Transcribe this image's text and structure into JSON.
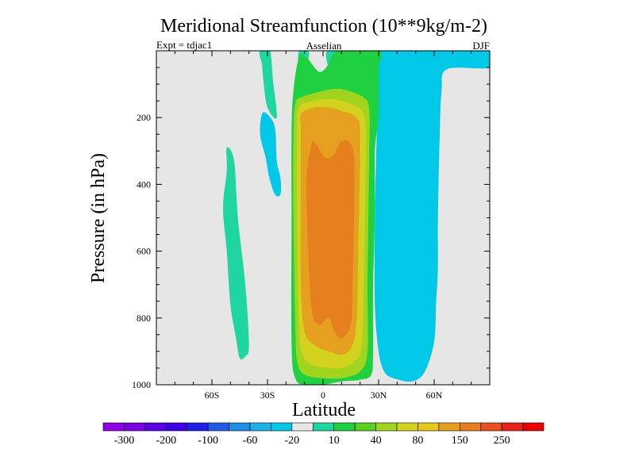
{
  "chart_data": {
    "type": "heatmap",
    "title": "Meridional Streamfunction (10**9kg/m-2)",
    "subtitle_left": "Expt = tdjac1",
    "subtitle_center": "Asselian",
    "subtitle_right": "DJF",
    "xlabel": "Latitude",
    "ylabel": "Pressure (in hPa)",
    "xlim": [
      -90,
      90
    ],
    "ylim": [
      1000,
      0
    ],
    "x_ticks": [
      {
        "value": -60,
        "label": "60S"
      },
      {
        "value": -30,
        "label": "30S"
      },
      {
        "value": 0,
        "label": "0"
      },
      {
        "value": 30,
        "label": "30N"
      },
      {
        "value": 60,
        "label": "60N"
      }
    ],
    "y_ticks": [
      {
        "value": 200,
        "label": "200"
      },
      {
        "value": 400,
        "label": "400"
      },
      {
        "value": 600,
        "label": "600"
      },
      {
        "value": 800,
        "label": "800"
      },
      {
        "value": 1000,
        "label": "1000"
      }
    ],
    "missing_color": "#e6e6e6",
    "colorbar": {
      "colors": [
        "#8f00e6",
        "#7a00e6",
        "#5c00e6",
        "#3d00e6",
        "#1f1fe6",
        "#1f5ce6",
        "#1f8fe6",
        "#1fb0e6",
        "#00c8e6",
        "#e6e6e6",
        "#1fd6a0",
        "#1fd040",
        "#5cd020",
        "#a0d41f",
        "#d2d21f",
        "#e6c81f",
        "#e6a01f",
        "#e6801f",
        "#e6501f",
        "#e61f1f",
        "#e60000"
      ],
      "labels": [
        {
          "after_index": 0,
          "text": "-300"
        },
        {
          "after_index": 2,
          "text": "-200"
        },
        {
          "after_index": 4,
          "text": "-100"
        },
        {
          "after_index": 6,
          "text": "-60"
        },
        {
          "after_index": 8,
          "text": "-20"
        },
        {
          "after_index": 10,
          "text": "10"
        },
        {
          "after_index": 12,
          "text": "40"
        },
        {
          "after_index": 14,
          "text": "80"
        },
        {
          "after_index": 16,
          "text": "150"
        },
        {
          "after_index": 18,
          "text": "250"
        }
      ]
    },
    "regions": [
      {
        "name": "sh-weak-positive-cell",
        "color": "#1fd6a0",
        "points": [
          [
            -52,
            290
          ],
          [
            -48,
            330
          ],
          [
            -46,
            500
          ],
          [
            -42,
            700
          ],
          [
            -40,
            880
          ],
          [
            -42,
            915
          ],
          [
            -45,
            920
          ],
          [
            -47,
            860
          ],
          [
            -50,
            760
          ],
          [
            -52,
            600
          ],
          [
            -54,
            470
          ],
          [
            -52,
            360
          ]
        ]
      },
      {
        "name": "sh-upper-negative-cell",
        "color": "#00c8e6",
        "points": [
          [
            -33,
            190
          ],
          [
            -30,
            190
          ],
          [
            -26,
            230
          ],
          [
            -25,
            330
          ],
          [
            -23,
            380
          ],
          [
            -23,
            430
          ],
          [
            -26,
            430
          ],
          [
            -29,
            380
          ],
          [
            -31,
            320
          ],
          [
            -34,
            250
          ]
        ]
      },
      {
        "name": "upper-positive-lobe-1",
        "color": "#1fd6a0",
        "points": [
          [
            -34,
            0
          ],
          [
            -29,
            0
          ],
          [
            -28,
            20
          ],
          [
            -27,
            90
          ],
          [
            -25,
            200
          ],
          [
            -30,
            170
          ],
          [
            -32,
            100
          ],
          [
            -33,
            40
          ],
          [
            -34,
            20
          ]
        ]
      },
      {
        "name": "upper-positive-lobe-2",
        "color": "#1fd6a0",
        "points": [
          [
            -13,
            0
          ],
          [
            -8,
            0
          ],
          [
            -8,
            30
          ],
          [
            -10,
            80
          ],
          [
            -13,
            60
          ]
        ]
      },
      {
        "name": "upper-positive-lobe-3",
        "color": "#1fd6a0",
        "points": [
          [
            2,
            0
          ],
          [
            7,
            0
          ],
          [
            7,
            40
          ],
          [
            4,
            60
          ],
          [
            2,
            30
          ]
        ]
      },
      {
        "name": "nh-negative-cell",
        "color": "#00c8e6",
        "points": [
          [
            30,
            0
          ],
          [
            90,
            0
          ],
          [
            90,
            50
          ],
          [
            67,
            55
          ],
          [
            64,
            120
          ],
          [
            63,
            250
          ],
          [
            62,
            500
          ],
          [
            62,
            650
          ],
          [
            61,
            760
          ],
          [
            60,
            870
          ],
          [
            55,
            960
          ],
          [
            48,
            990
          ],
          [
            38,
            980
          ],
          [
            33,
            960
          ],
          [
            30,
            900
          ],
          [
            28,
            760
          ],
          [
            28,
            500
          ],
          [
            29,
            250
          ],
          [
            30,
            100
          ]
        ]
      },
      {
        "name": "nh-negative-core",
        "color": "#00c8e6",
        "points": [
          [
            50,
            140
          ],
          [
            55,
            210
          ],
          [
            59,
            320
          ],
          [
            60,
            480
          ],
          [
            59,
            620
          ],
          [
            58,
            760
          ],
          [
            56,
            880
          ],
          [
            52,
            940
          ],
          [
            45,
            960
          ],
          [
            38,
            950
          ],
          [
            35,
            880
          ],
          [
            33,
            700
          ],
          [
            33,
            500
          ],
          [
            35,
            330
          ],
          [
            40,
            230
          ],
          [
            45,
            180
          ]
        ]
      },
      {
        "name": "hadley-positive-40",
        "color": "#1fd040",
        "points": [
          [
            -13,
            20
          ],
          [
            -9,
            20
          ],
          [
            -3,
            60
          ],
          [
            0,
            60
          ],
          [
            3,
            40
          ],
          [
            8,
            0
          ],
          [
            30,
            0
          ],
          [
            30,
            60
          ],
          [
            30,
            200
          ],
          [
            28,
            300
          ],
          [
            28,
            500
          ],
          [
            27,
            700
          ],
          [
            27,
            900
          ],
          [
            26,
            970
          ],
          [
            20,
            985
          ],
          [
            10,
            990
          ],
          [
            0,
            1000
          ],
          [
            -10,
            1000
          ],
          [
            -15,
            980
          ],
          [
            -17,
            880
          ],
          [
            -17,
            500
          ],
          [
            -17,
            240
          ],
          [
            -16,
            120
          ]
        ]
      },
      {
        "name": "hadley-positive-80",
        "color": "#a0d41f",
        "points": [
          [
            -15,
            160
          ],
          [
            -12,
            140
          ],
          [
            0,
            120
          ],
          [
            10,
            115
          ],
          [
            22,
            140
          ],
          [
            25,
            180
          ],
          [
            25,
            300
          ],
          [
            24,
            700
          ],
          [
            24,
            900
          ],
          [
            20,
            960
          ],
          [
            10,
            980
          ],
          [
            0,
            980
          ],
          [
            -10,
            970
          ],
          [
            -14,
            930
          ],
          [
            -15,
            820
          ],
          [
            -16,
            500
          ],
          [
            -16,
            260
          ]
        ]
      },
      {
        "name": "hadley-positive-100",
        "color": "#d2d21f",
        "points": [
          [
            -13,
            170
          ],
          [
            -5,
            150
          ],
          [
            5,
            145
          ],
          [
            15,
            160
          ],
          [
            22,
            190
          ],
          [
            23,
            300
          ],
          [
            22,
            700
          ],
          [
            21,
            880
          ],
          [
            17,
            930
          ],
          [
            10,
            950
          ],
          [
            2,
            950
          ],
          [
            -6,
            940
          ],
          [
            -11,
            910
          ],
          [
            -13,
            820
          ],
          [
            -14,
            500
          ],
          [
            -14,
            250
          ]
        ]
      },
      {
        "name": "hadley-positive-150",
        "color": "#e6a01f",
        "points": [
          [
            -12,
            190
          ],
          [
            -5,
            170
          ],
          [
            3,
            170
          ],
          [
            10,
            180
          ],
          [
            18,
            200
          ],
          [
            20,
            260
          ],
          [
            19,
            600
          ],
          [
            18,
            820
          ],
          [
            15,
            890
          ],
          [
            10,
            910
          ],
          [
            3,
            900
          ],
          [
            -5,
            880
          ],
          [
            -10,
            840
          ],
          [
            -12,
            700
          ],
          [
            -12,
            400
          ],
          [
            -12,
            240
          ]
        ]
      },
      {
        "name": "hadley-positive-200",
        "color": "#e6801f",
        "points": [
          [
            -5,
            270
          ],
          [
            1,
            320
          ],
          [
            6,
            310
          ],
          [
            10,
            270
          ],
          [
            15,
            280
          ],
          [
            17,
            360
          ],
          [
            16,
            700
          ],
          [
            15,
            820
          ],
          [
            10,
            860
          ],
          [
            6,
            840
          ],
          [
            3,
            800
          ],
          [
            -2,
            820
          ],
          [
            -6,
            780
          ],
          [
            -8,
            600
          ],
          [
            -9,
            400
          ],
          [
            -7,
            300
          ]
        ]
      }
    ]
  }
}
